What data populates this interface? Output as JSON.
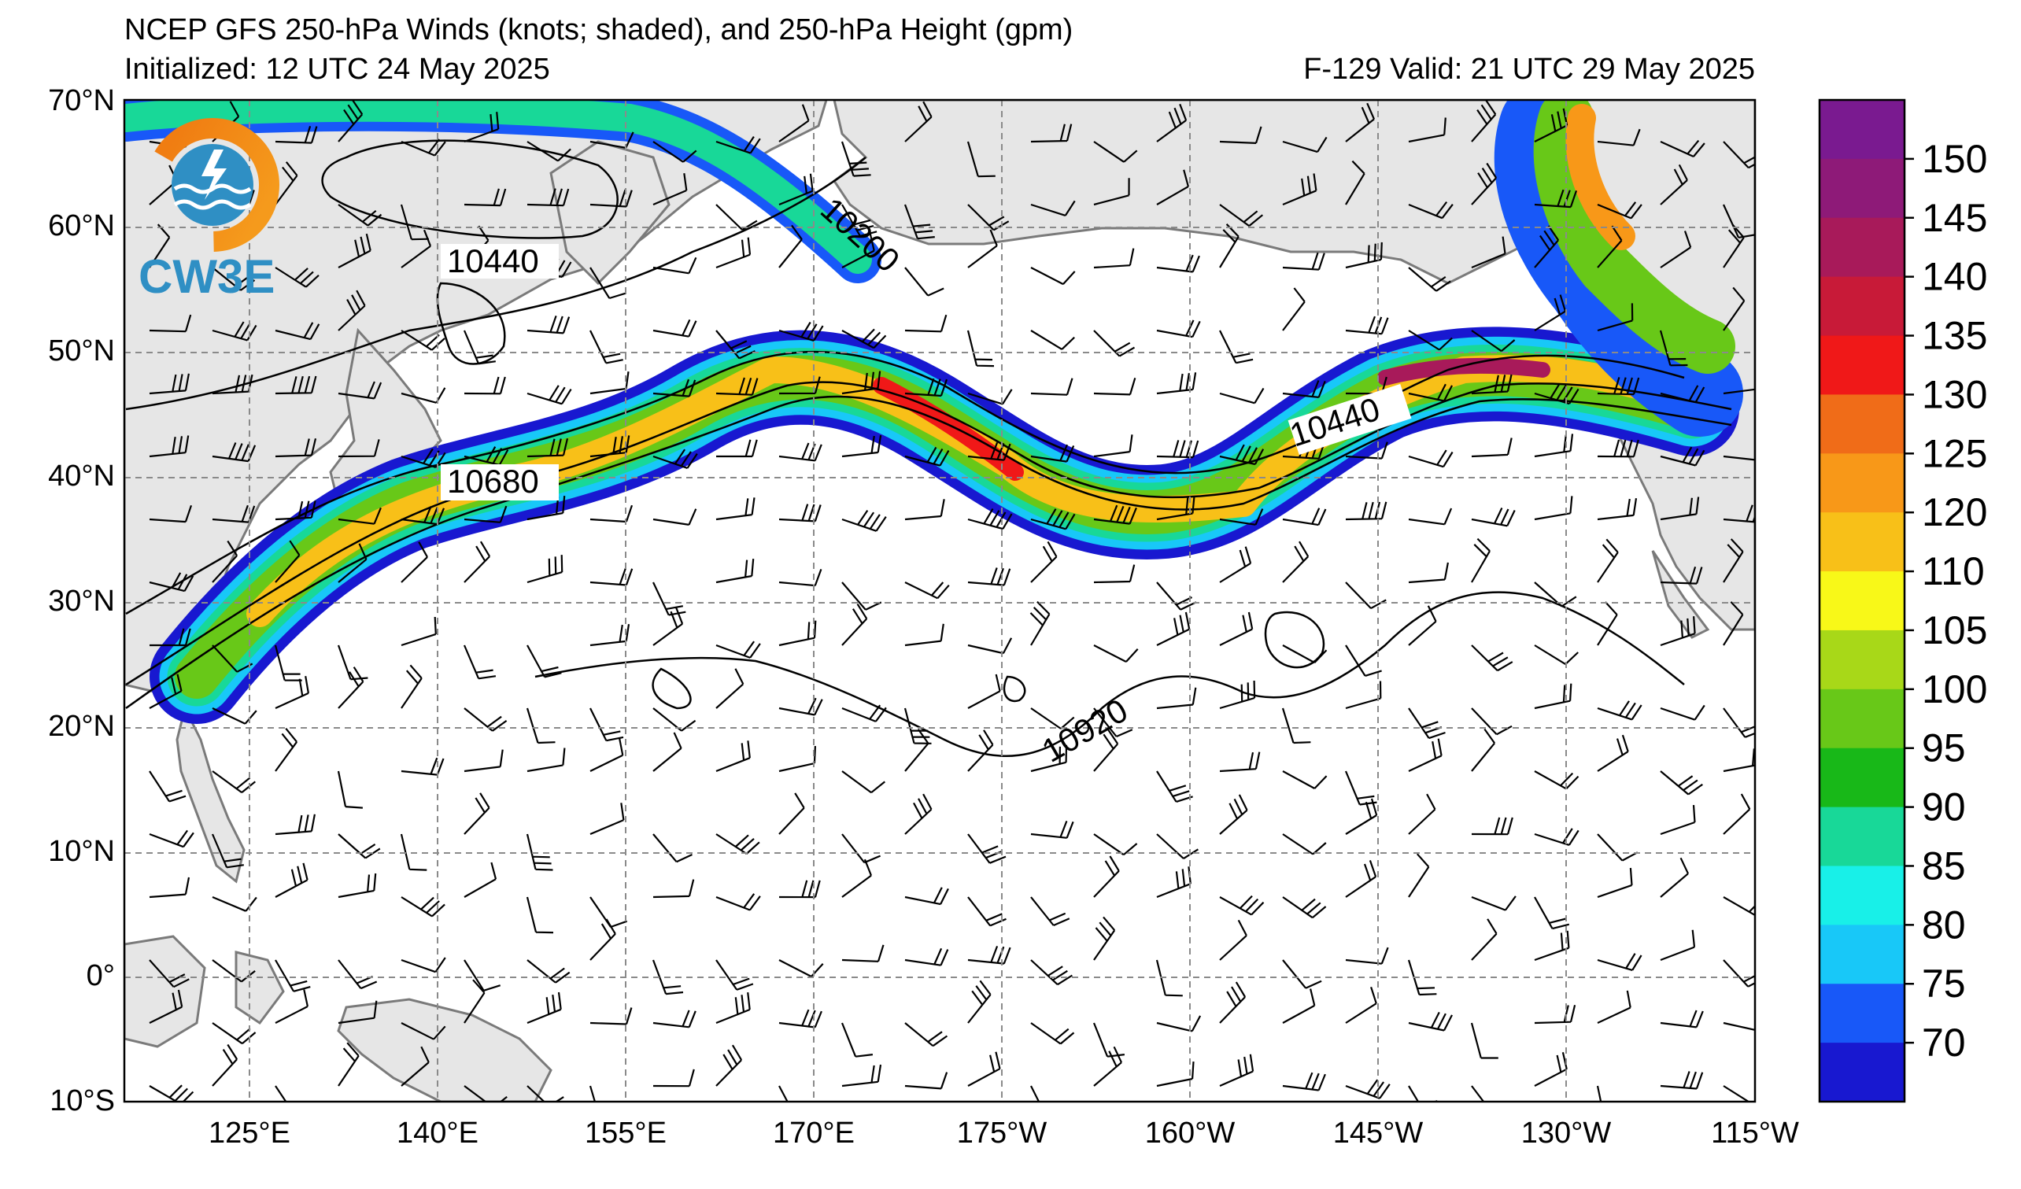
{
  "header": {
    "title": "NCEP GFS 250-hPa Winds (knots; shaded), and 250-hPa Height (gpm)",
    "initialized": "Initialized: 12 UTC 24 May 2025",
    "valid": "F-129  Valid: 21 UTC 29 May 2025"
  },
  "logo": {
    "text": "CW3E",
    "icon": "cw3e-logo-icon"
  },
  "map": {
    "lat_labels": [
      "70°N",
      "60°N",
      "50°N",
      "40°N",
      "30°N",
      "20°N",
      "10°N",
      "0°",
      "10°S"
    ],
    "lon_labels": [
      "125°E",
      "140°E",
      "155°E",
      "170°E",
      "175°W",
      "160°W",
      "145°W",
      "130°W",
      "115°W"
    ],
    "contour_labels": [
      "10440",
      "10200",
      "10680",
      "10440",
      "10920"
    ]
  },
  "colorbar": {
    "labels": [
      "150",
      "145",
      "140",
      "135",
      "130",
      "125",
      "120",
      "110",
      "105",
      "100",
      "95",
      "90",
      "85",
      "80",
      "75",
      "70"
    ],
    "colors": [
      "#7a1a90",
      "#8e1a78",
      "#a81a5a",
      "#c81a38",
      "#f01818",
      "#f06c18",
      "#f89818",
      "#f8c018",
      "#f8f818",
      "#a8d818",
      "#68c818",
      "#18b818",
      "#18d898",
      "#18f0e8",
      "#18c8f8",
      "#1858f8",
      "#1818d0"
    ]
  }
}
